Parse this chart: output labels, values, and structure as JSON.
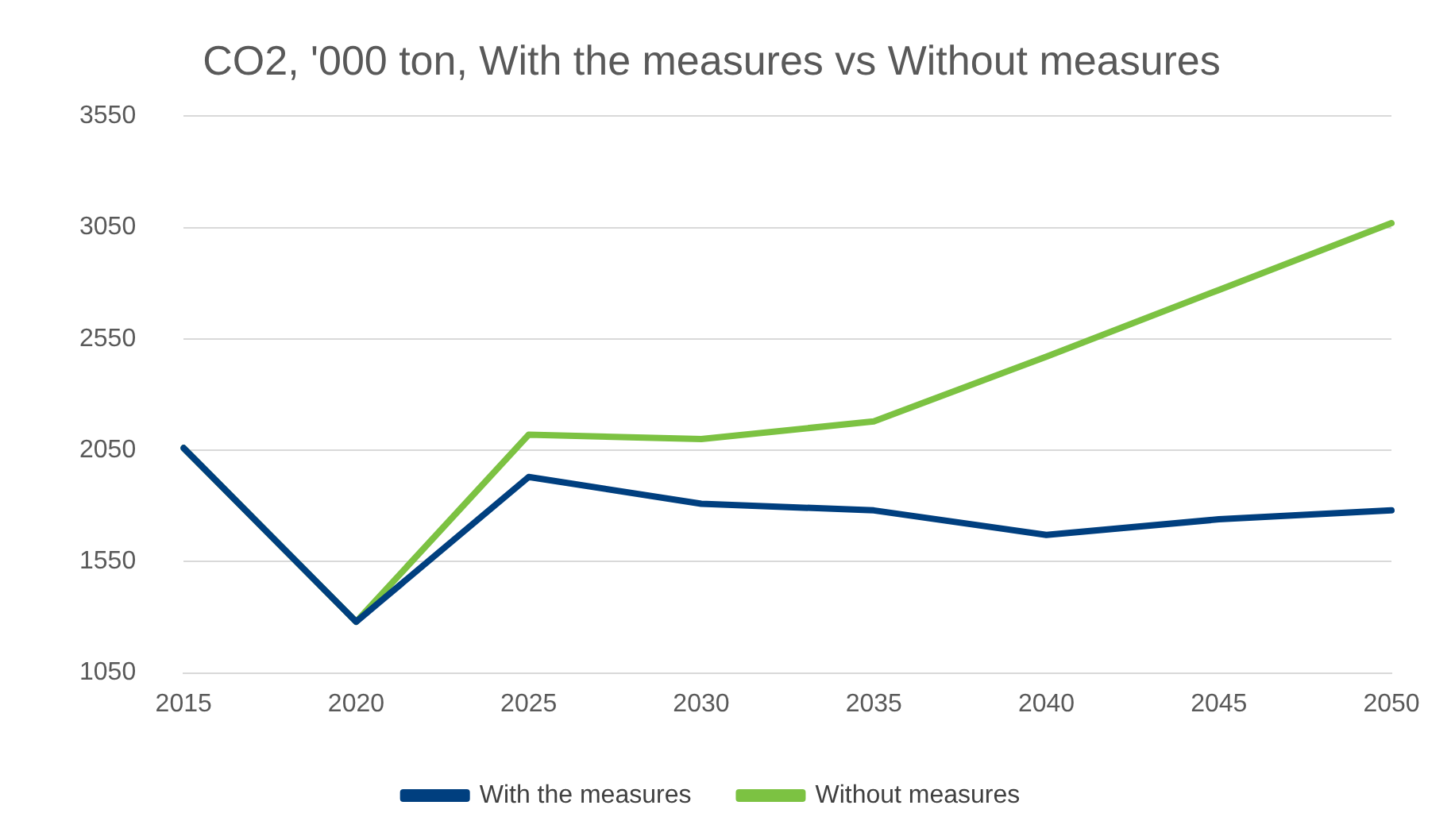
{
  "chart_data": {
    "type": "line",
    "title": "CO2, '000 ton, With the measures vs Without measures",
    "categories": [
      "2015",
      "2020",
      "2025",
      "2030",
      "2035",
      "2040",
      "2045",
      "2050"
    ],
    "series": [
      {
        "name": "With the measures",
        "color": "#003f7f",
        "values": [
          2060,
          1280,
          1930,
          1810,
          1780,
          1670,
          1740,
          1780
        ]
      },
      {
        "name": "Without measures",
        "color": "#7cc242",
        "values": [
          2060,
          1280,
          2120,
          2100,
          2180,
          2470,
          2770,
          3070
        ]
      }
    ],
    "ylim": [
      1050,
      3550
    ],
    "yticks": [
      1050,
      1550,
      2050,
      2550,
      3050,
      3550
    ],
    "grid": "y",
    "legend": "bottom",
    "marker": "none",
    "line_style": "solid"
  }
}
